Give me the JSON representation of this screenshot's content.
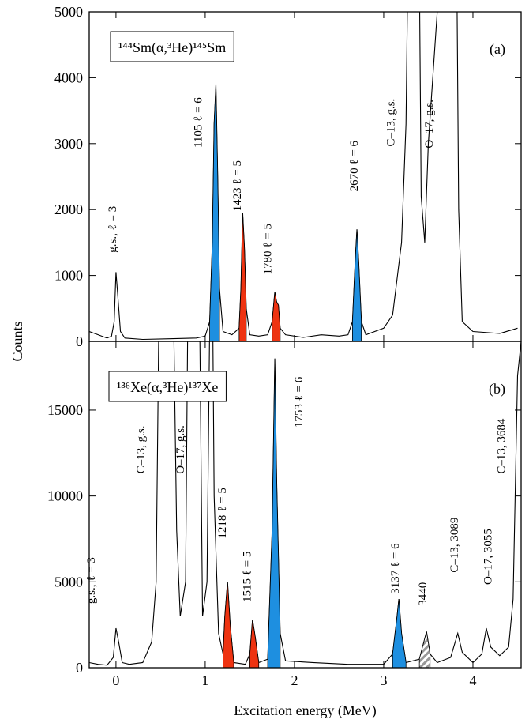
{
  "chart_data": [
    {
      "type": "line",
      "title": "¹⁴⁴Sm(α,³He)¹⁴⁵Sm",
      "panel_label": "(a)",
      "y_label": "Counts",
      "xlim": [
        -0.3,
        4.54
      ],
      "xticks": [
        0,
        1,
        2,
        3,
        4
      ],
      "ylim": [
        0,
        5000
      ],
      "yticks": [
        0,
        1000,
        2000,
        3000,
        4000,
        5000
      ],
      "series": [
        {
          "color": "#000000",
          "fill": false,
          "x": [
            -0.3,
            -0.2,
            -0.1,
            -0.05,
            -0.02,
            0,
            0.02,
            0.05,
            0.1,
            0.3,
            0.6,
            0.9,
            1.0,
            1.05,
            1.08,
            1.1,
            1.12,
            1.14,
            1.16,
            1.2,
            1.3,
            1.38,
            1.4,
            1.42,
            1.44,
            1.46,
            1.5,
            1.6,
            1.7,
            1.75,
            1.78,
            1.8,
            1.82,
            1.84,
            1.9,
            2.1,
            2.3,
            2.5,
            2.6,
            2.65,
            2.68,
            2.7,
            2.72,
            2.75,
            2.8,
            3.0,
            3.1,
            3.2,
            3.25,
            3.3,
            3.38,
            3.42,
            3.46,
            3.5,
            3.6,
            3.62,
            3.8,
            3.84,
            3.88,
            4.0,
            4.3,
            4.5
          ],
          "values": [
            150,
            100,
            50,
            80,
            300,
            1050,
            700,
            150,
            50,
            30,
            40,
            50,
            80,
            300,
            1500,
            3300,
            3900,
            2500,
            800,
            150,
            100,
            200,
            800,
            1950,
            1400,
            500,
            100,
            80,
            100,
            300,
            750,
            600,
            550,
            200,
            100,
            60,
            100,
            80,
            100,
            300,
            1200,
            1700,
            1200,
            300,
            100,
            200,
            400,
            1500,
            3300,
            9000,
            9000,
            2200,
            1500,
            3000,
            5000,
            9000,
            9000,
            2000,
            300,
            150,
            120,
            200
          ]
        },
        {
          "color": "#1e8fe0",
          "fill": true,
          "x": [
            1.05,
            1.08,
            1.1,
            1.12,
            1.14,
            1.16
          ],
          "values": [
            300,
            1500,
            3300,
            3900,
            2500,
            800
          ]
        },
        {
          "color": "#ee3311",
          "fill": true,
          "x": [
            1.38,
            1.4,
            1.42,
            1.44,
            1.46
          ],
          "values": [
            200,
            800,
            1950,
            1400,
            500
          ]
        },
        {
          "color": "#ee3311",
          "fill": true,
          "x": [
            1.75,
            1.78,
            1.8,
            1.82,
            1.84
          ],
          "values": [
            300,
            750,
            600,
            550,
            200
          ]
        },
        {
          "color": "#1e8fe0",
          "fill": true,
          "x": [
            2.65,
            2.68,
            2.7,
            2.72,
            2.75
          ],
          "values": [
            300,
            1200,
            1700,
            1200,
            300
          ]
        }
      ],
      "annotations": [
        "g.s., ℓ = 3",
        "1105 ℓ = 6",
        "1423 ℓ = 5",
        "1780 ℓ = 5",
        "2670 ℓ = 6",
        "C–13, g.s.",
        "O–17, g.s."
      ]
    },
    {
      "type": "line",
      "title": "¹³⁶Xe(α,³He)¹³⁷Xe",
      "panel_label": "(b)",
      "x_label": "Excitation energy (MeV)",
      "xlim": [
        -0.3,
        4.54
      ],
      "xticks": [
        0,
        1,
        2,
        3,
        4
      ],
      "ylim": [
        0,
        19000
      ],
      "yticks": [
        0,
        5000,
        10000,
        15000
      ],
      "series": [
        {
          "color": "#000000",
          "fill": false,
          "x": [
            -0.3,
            -0.2,
            -0.1,
            -0.03,
            0,
            0.03,
            0.07,
            0.15,
            0.3,
            0.4,
            0.45,
            0.5,
            0.62,
            0.68,
            0.72,
            0.78,
            0.82,
            0.92,
            0.97,
            1.02,
            1.07,
            1.1,
            1.15,
            1.2,
            1.22,
            1.25,
            1.28,
            1.32,
            1.45,
            1.5,
            1.53,
            1.56,
            1.6,
            1.7,
            1.75,
            1.78,
            1.8,
            1.84,
            1.9,
            2.2,
            2.6,
            3.0,
            3.1,
            3.15,
            3.17,
            3.2,
            3.25,
            3.4,
            3.45,
            3.48,
            3.52,
            3.6,
            3.75,
            3.83,
            3.88,
            4.0,
            4.1,
            4.15,
            4.2,
            4.3,
            4.4,
            4.45,
            4.5,
            4.54
          ],
          "values": [
            300,
            200,
            150,
            600,
            2300,
            1500,
            300,
            200,
            300,
            1500,
            5000,
            30000,
            30000,
            8000,
            3000,
            5000,
            30000,
            30000,
            3000,
            5000,
            30000,
            10000,
            2000,
            800,
            3000,
            5000,
            2500,
            300,
            200,
            800,
            2800,
            1800,
            300,
            500,
            8000,
            18000,
            11000,
            2000,
            400,
            300,
            200,
            200,
            800,
            3000,
            4000,
            2000,
            300,
            500,
            1500,
            2100,
            800,
            300,
            600,
            2000,
            900,
            300,
            800,
            2300,
            1200,
            700,
            1200,
            4000,
            17000,
            19000
          ]
        },
        {
          "color": "#ee3311",
          "fill": true,
          "x": [
            1.2,
            1.22,
            1.25,
            1.28,
            1.32
          ],
          "values": [
            800,
            3000,
            5000,
            2500,
            300
          ]
        },
        {
          "color": "#ee3311",
          "fill": true,
          "x": [
            1.5,
            1.53,
            1.56,
            1.6
          ],
          "values": [
            800,
            2800,
            1800,
            300
          ]
        },
        {
          "color": "#1e8fe0",
          "fill": true,
          "x": [
            1.7,
            1.75,
            1.78,
            1.8,
            1.84
          ],
          "values": [
            500,
            8000,
            18000,
            11000,
            2000
          ]
        },
        {
          "color": "#1e8fe0",
          "fill": true,
          "x": [
            3.1,
            3.15,
            3.17,
            3.2,
            3.25
          ],
          "values": [
            800,
            3000,
            4000,
            2000,
            300
          ]
        },
        {
          "color": "#999999",
          "fill": "hatch",
          "x": [
            3.4,
            3.45,
            3.48,
            3.52
          ],
          "values": [
            500,
            1500,
            2100,
            800
          ]
        }
      ],
      "annotations": [
        "g.s., ℓ = 3",
        "C–13, g.s.",
        "O–17, g.s.",
        "1218 ℓ = 5",
        "1515 ℓ = 5",
        "1753 ℓ = 6",
        "3137 ℓ = 6",
        "3440",
        "C–13, 3089",
        "O–17, 3055",
        "C–13, 3684"
      ]
    }
  ]
}
